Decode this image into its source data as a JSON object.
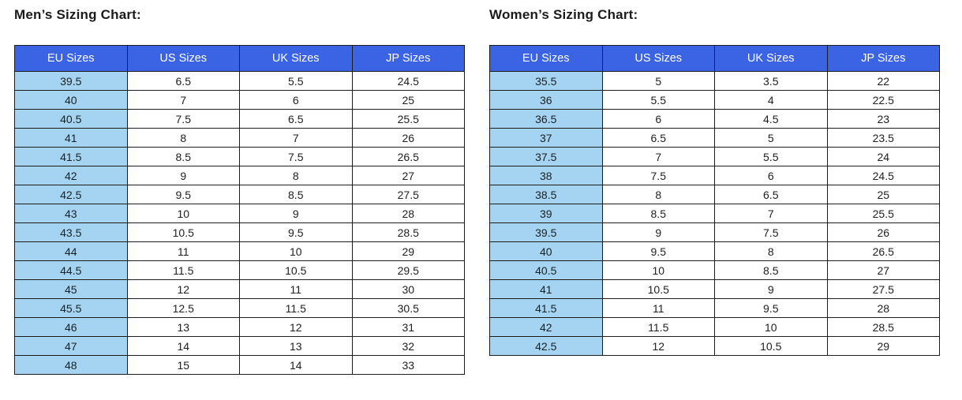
{
  "colors": {
    "header_bg": "#3a64e4",
    "header_text": "#ffffff",
    "eu_col_bg": "#a5d4f2",
    "row_bg": "#ffffff",
    "border": "#1c1c1c",
    "cell_text": "#1f1f1f",
    "title_text": "#1b1b1b"
  },
  "chart_data": [
    {
      "type": "table",
      "title": "Men’s Sizing Chart:",
      "columns": [
        "EU Sizes",
        "US Sizes",
        "UK Sizes",
        "JP Sizes"
      ],
      "rows": [
        [
          "39.5",
          "6.5",
          "5.5",
          "24.5"
        ],
        [
          "40",
          "7",
          "6",
          "25"
        ],
        [
          "40.5",
          "7.5",
          "6.5",
          "25.5"
        ],
        [
          "41",
          "8",
          "7",
          "26"
        ],
        [
          "41.5",
          "8.5",
          "7.5",
          "26.5"
        ],
        [
          "42",
          "9",
          "8",
          "27"
        ],
        [
          "42.5",
          "9.5",
          "8.5",
          "27.5"
        ],
        [
          "43",
          "10",
          "9",
          "28"
        ],
        [
          "43.5",
          "10.5",
          "9.5",
          "28.5"
        ],
        [
          "44",
          "11",
          "10",
          "29"
        ],
        [
          "44.5",
          "11.5",
          "10.5",
          "29.5"
        ],
        [
          "45",
          "12",
          "11",
          "30"
        ],
        [
          "45.5",
          "12.5",
          "11.5",
          "30.5"
        ],
        [
          "46",
          "13",
          "12",
          "31"
        ],
        [
          "47",
          "14",
          "13",
          "32"
        ],
        [
          "48",
          "15",
          "14",
          "33"
        ]
      ]
    },
    {
      "type": "table",
      "title": "Women’s Sizing Chart:",
      "columns": [
        "EU Sizes",
        "US Sizes",
        "UK Sizes",
        "JP Sizes"
      ],
      "rows": [
        [
          "35.5",
          "5",
          "3.5",
          "22"
        ],
        [
          "36",
          "5.5",
          "4",
          "22.5"
        ],
        [
          "36.5",
          "6",
          "4.5",
          "23"
        ],
        [
          "37",
          "6.5",
          "5",
          "23.5"
        ],
        [
          "37.5",
          "7",
          "5.5",
          "24"
        ],
        [
          "38",
          "7.5",
          "6",
          "24.5"
        ],
        [
          "38.5",
          "8",
          "6.5",
          "25"
        ],
        [
          "39",
          "8.5",
          "7",
          "25.5"
        ],
        [
          "39.5",
          "9",
          "7.5",
          "26"
        ],
        [
          "40",
          "9.5",
          "8",
          "26.5"
        ],
        [
          "40.5",
          "10",
          "8.5",
          "27"
        ],
        [
          "41",
          "10.5",
          "9",
          "27.5"
        ],
        [
          "41.5",
          "11",
          "9.5",
          "28"
        ],
        [
          "42",
          "11.5",
          "10",
          "28.5"
        ],
        [
          "42.5",
          "12",
          "10.5",
          "29"
        ]
      ]
    }
  ]
}
